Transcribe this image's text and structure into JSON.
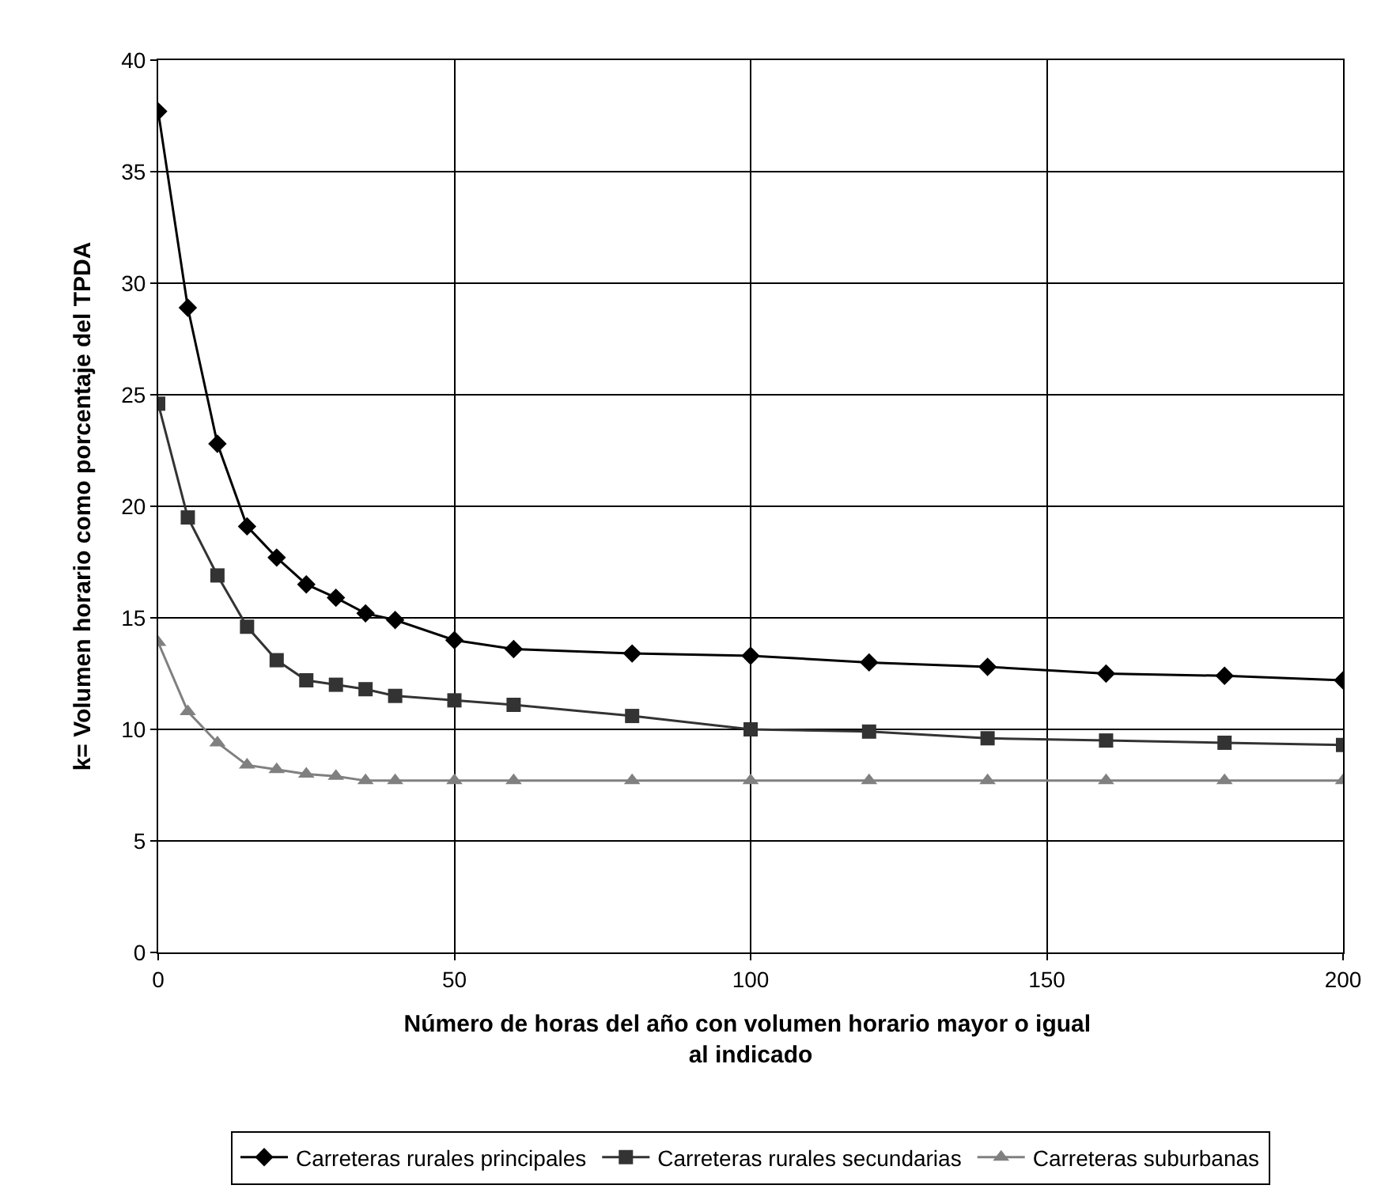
{
  "chart_data": {
    "type": "line",
    "xlabel": "Número de horas del año con volumen horario mayor o igual  al indicado",
    "ylabel": "k= Volumen horario como porcentaje del TPDA",
    "x": [
      0,
      5,
      10,
      15,
      20,
      25,
      30,
      35,
      40,
      50,
      60,
      80,
      100,
      120,
      140,
      160,
      180,
      200
    ],
    "series": [
      {
        "name": "Carreteras rurales principales",
        "color": "#000000",
        "marker": "diamond",
        "values": [
          37.7,
          28.9,
          22.8,
          19.1,
          17.7,
          16.5,
          15.9,
          15.2,
          14.9,
          14.0,
          13.6,
          13.4,
          13.3,
          13.0,
          12.8,
          12.5,
          12.4,
          12.2
        ]
      },
      {
        "name": "Carreteras rurales secundarias",
        "color": "#333333",
        "marker": "square",
        "values": [
          24.6,
          19.5,
          16.9,
          14.6,
          13.1,
          12.2,
          12.0,
          11.8,
          11.5,
          11.3,
          11.1,
          10.6,
          10.0,
          9.9,
          9.6,
          9.5,
          9.4,
          9.3
        ]
      },
      {
        "name": "Carreteras suburbanas",
        "color": "#808080",
        "marker": "triangle",
        "values": [
          13.9,
          10.8,
          9.4,
          8.4,
          8.2,
          8.0,
          7.9,
          7.7,
          7.7,
          7.7,
          7.7,
          7.7,
          7.7,
          7.7,
          7.7,
          7.7,
          7.7,
          7.7
        ]
      }
    ],
    "xlim": [
      0,
      200
    ],
    "xticks": [
      0,
      50,
      100,
      150,
      200
    ],
    "ylim": [
      0,
      40
    ],
    "yticks": [
      0,
      5,
      10,
      15,
      20,
      25,
      30,
      35,
      40
    ],
    "grid": true,
    "legend": "bottom",
    "line_style": "solid"
  }
}
